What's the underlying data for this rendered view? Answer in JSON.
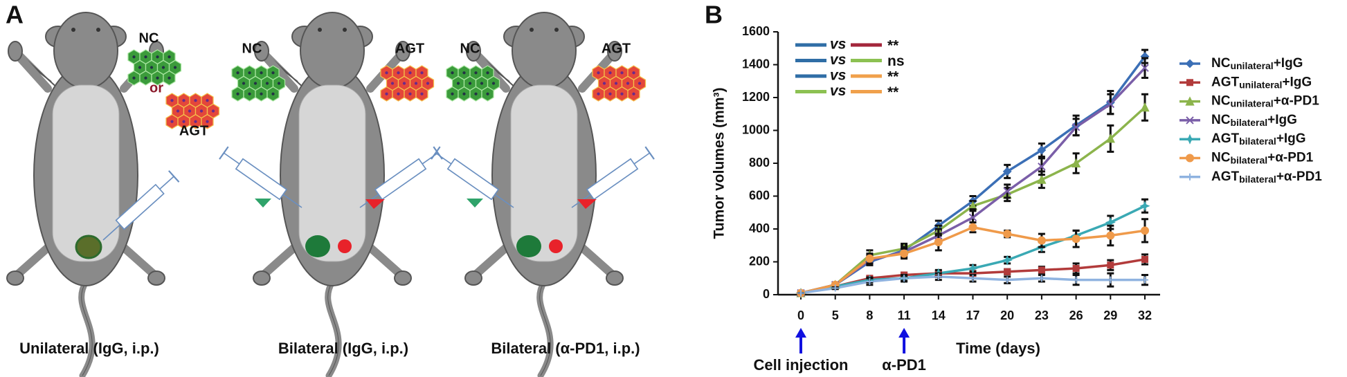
{
  "panel_a": {
    "label": "A",
    "mouse_1": {
      "cells_top": "NC",
      "or": "or",
      "cells_bottom": "AGT",
      "caption": "Unilateral (IgG, i.p.)"
    },
    "mouse_2": {
      "cells_left": "NC",
      "cells_right": "AGT",
      "caption": "Bilateral (IgG, i.p.)"
    },
    "mouse_3": {
      "cells_left": "NC",
      "cells_right": "AGT",
      "caption": "Bilateral (α-PD1, i.p.)"
    }
  },
  "chart_data": {
    "type": "line",
    "panel_label": "B",
    "y_label": "Tumor volumes (mm³)",
    "x_label": "Time (days)",
    "categories": [
      0,
      5,
      8,
      11,
      14,
      17,
      20,
      23,
      26,
      29,
      32
    ],
    "ylim": [
      0,
      1600
    ],
    "yticks": [
      0,
      200,
      400,
      600,
      800,
      1000,
      1200,
      1400,
      1600
    ],
    "series": [
      {
        "name": [
          "NC",
          "unilateral",
          "+IgG"
        ],
        "color": "#3b6fb6",
        "marker": "diamond",
        "values": [
          10,
          60,
          200,
          270,
          420,
          570,
          750,
          880,
          1030,
          1170,
          1450
        ],
        "errors": [
          0,
          5,
          20,
          30,
          30,
          30,
          40,
          40,
          60,
          70,
          40
        ]
      },
      {
        "name": [
          "AGT",
          "unilateral",
          "+IgG"
        ],
        "color": "#b23b3b",
        "marker": "square",
        "values": [
          10,
          50,
          100,
          120,
          130,
          130,
          140,
          150,
          160,
          180,
          215
        ],
        "errors": [
          0,
          5,
          10,
          15,
          10,
          10,
          15,
          20,
          30,
          30,
          30
        ]
      },
      {
        "name": [
          "NC",
          "unilateral",
          "+α-PD1"
        ],
        "color": "#8cb44c",
        "marker": "triangle",
        "values": [
          10,
          60,
          240,
          280,
          390,
          540,
          610,
          700,
          800,
          950,
          1140
        ],
        "errors": [
          0,
          5,
          30,
          30,
          30,
          30,
          40,
          50,
          60,
          80,
          80
        ]
      },
      {
        "name": [
          "NC",
          "bilateral",
          "+IgG"
        ],
        "color": "#7a5ea8",
        "marker": "x",
        "values": [
          10,
          60,
          210,
          260,
          360,
          470,
          630,
          780,
          1020,
          1160,
          1380
        ],
        "errors": [
          0,
          5,
          30,
          30,
          40,
          50,
          40,
          50,
          50,
          60,
          60
        ]
      },
      {
        "name": [
          "AGT",
          "bilateral",
          "+IgG"
        ],
        "color": "#3aa9b4",
        "marker": "star",
        "values": [
          10,
          50,
          90,
          100,
          130,
          160,
          210,
          290,
          360,
          440,
          540
        ],
        "errors": [
          0,
          5,
          15,
          15,
          20,
          20,
          20,
          30,
          30,
          40,
          40
        ]
      },
      {
        "name": [
          "NC",
          "bilateral",
          "+α-PD1"
        ],
        "color": "#ef9a4a",
        "marker": "circle",
        "values": [
          10,
          60,
          220,
          250,
          320,
          410,
          370,
          330,
          340,
          360,
          390
        ],
        "errors": [
          0,
          5,
          30,
          30,
          50,
          30,
          20,
          40,
          50,
          60,
          70
        ]
      },
      {
        "name": [
          "AGT",
          "bilateral",
          "+α-PD1"
        ],
        "color": "#8fb3e0",
        "marker": "plus",
        "values": [
          10,
          40,
          80,
          100,
          110,
          100,
          90,
          100,
          90,
          90,
          90
        ],
        "errors": [
          0,
          5,
          20,
          20,
          20,
          20,
          20,
          20,
          30,
          40,
          30
        ]
      }
    ],
    "comparisons": [
      {
        "colors": [
          "#2f6ea6",
          "#a3263b"
        ],
        "vs": "vs",
        "label": "**"
      },
      {
        "colors": [
          "#2f6ea6",
          "#8cc152"
        ],
        "vs": "vs",
        "label": "ns"
      },
      {
        "colors": [
          "#2f6ea6",
          "#f0a04b"
        ],
        "vs": "vs",
        "label": "**"
      },
      {
        "colors": [
          "#8cc152",
          "#f0a04b"
        ],
        "vs": "vs",
        "label": "**"
      }
    ],
    "annotations": [
      {
        "text": "Cell injection",
        "category": 0,
        "color": "#1010e0"
      },
      {
        "text": "α-PD1",
        "category": 11,
        "color": "#1010e0"
      }
    ]
  }
}
